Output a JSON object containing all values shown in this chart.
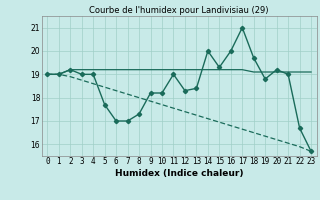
{
  "title": "Courbe de l'humidex pour Landivisiau (29)",
  "xlabel": "Humidex (Indice chaleur)",
  "x": [
    0,
    1,
    2,
    3,
    4,
    5,
    6,
    7,
    8,
    9,
    10,
    11,
    12,
    13,
    14,
    15,
    16,
    17,
    18,
    19,
    20,
    21,
    22,
    23
  ],
  "y_main": [
    19.0,
    19.0,
    19.2,
    19.0,
    19.0,
    17.7,
    17.0,
    17.0,
    17.3,
    18.2,
    18.2,
    19.0,
    18.3,
    18.4,
    20.0,
    19.3,
    20.0,
    21.0,
    19.7,
    18.8,
    19.2,
    19.0,
    16.7,
    15.7
  ],
  "y_flat": [
    19.0,
    19.0,
    19.2,
    19.2,
    19.2,
    19.2,
    19.2,
    19.2,
    19.2,
    19.2,
    19.2,
    19.2,
    19.2,
    19.2,
    19.2,
    19.2,
    19.2,
    19.2,
    19.1,
    19.1,
    19.1,
    19.1,
    19.1,
    19.1
  ],
  "y_decline": [
    19.0,
    19.0,
    18.9,
    18.75,
    18.6,
    18.45,
    18.3,
    18.15,
    18.0,
    17.85,
    17.7,
    17.55,
    17.4,
    17.25,
    17.1,
    16.95,
    16.8,
    16.65,
    16.5,
    16.35,
    16.2,
    16.05,
    15.9,
    15.7
  ],
  "ylim": [
    15.5,
    21.5
  ],
  "xlim": [
    -0.5,
    23.5
  ],
  "yticks": [
    16,
    17,
    18,
    19,
    20,
    21
  ],
  "color": "#1a6b5a",
  "bg_color": "#c8eae8",
  "grid_color": "#a0cfc8",
  "title_fontsize": 6.0,
  "xlabel_fontsize": 6.5,
  "tick_fontsize": 5.5
}
